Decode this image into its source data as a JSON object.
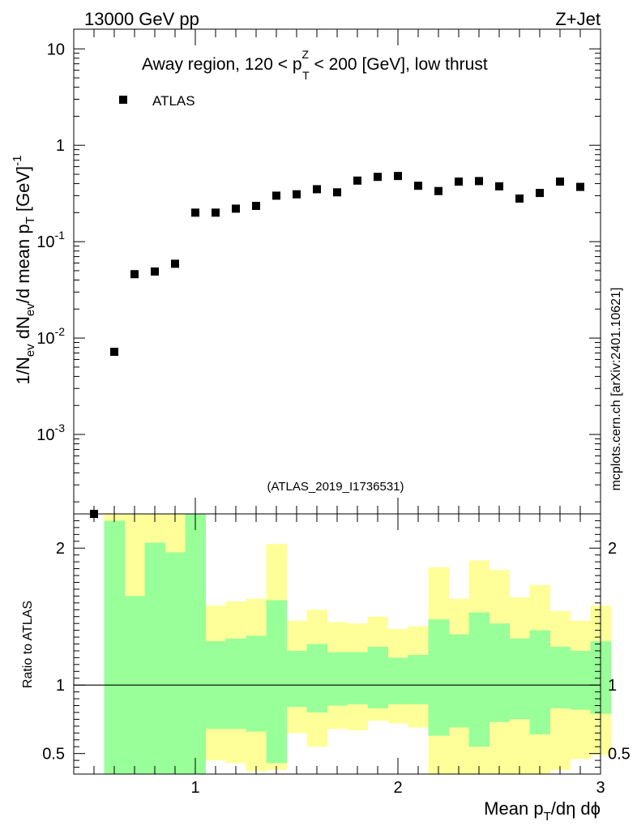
{
  "header": {
    "left": "13000 GeV pp",
    "right": "Z+Jet"
  },
  "watermark": "mcplots.cern.ch [arXiv:2401.10621]",
  "analysis_tag": "(ATLAS_2019_I1736531)",
  "colors": {
    "band_inner": "#99ff99",
    "band_outer": "#ffff99",
    "marker": "#000000",
    "axis": "#000000",
    "tag": "#999999"
  },
  "chart_data": [
    {
      "type": "scatter",
      "title": {
        "main": "Away region, 120 < p",
        "sup": "Z",
        "sub": "T",
        "tail": " < 200 [GeV], low thrust"
      },
      "ylabel": {
        "a": "1/N",
        "a_sub": "ev",
        "b": " dN",
        "b_sub": "ev",
        "c": "/d mean p",
        "c_sub": "T",
        "d": " [GeV]",
        "d_sup": "-1"
      },
      "yscale": "log",
      "ylim": [
        0.00015,
        16
      ],
      "xlim": [
        0.4,
        3.0
      ],
      "ytick_labels": [
        {
          "value": 10,
          "base": "10",
          "exp": ""
        },
        {
          "value": 1,
          "base": "1",
          "exp": ""
        },
        {
          "value": 0.1,
          "base": "10",
          "exp": "-1"
        },
        {
          "value": 0.01,
          "base": "10",
          "exp": "-2"
        },
        {
          "value": 0.001,
          "base": "10",
          "exp": "-3"
        }
      ],
      "legend": {
        "label": "ATLAS",
        "placement": "top-left"
      },
      "series": [
        {
          "name": "ATLAS",
          "x": [
            0.5,
            0.6,
            0.7,
            0.8,
            0.9,
            1.0,
            1.1,
            1.2,
            1.3,
            1.4,
            1.5,
            1.6,
            1.7,
            1.8,
            1.9,
            2.0,
            2.1,
            2.2,
            2.3,
            2.4,
            2.5,
            2.6,
            2.7,
            2.8,
            2.9
          ],
          "y": [
            0.00015,
            0.0072,
            0.046,
            0.049,
            0.059,
            0.2,
            0.2,
            0.22,
            0.235,
            0.3,
            0.31,
            0.35,
            0.325,
            0.43,
            0.47,
            0.48,
            0.38,
            0.335,
            0.42,
            0.425,
            0.375,
            0.28,
            0.32,
            0.42,
            0.37
          ]
        }
      ]
    },
    {
      "type": "area",
      "ylabel": "Ratio to ATLAS",
      "xlabel": {
        "a": "Mean p",
        "a_sub": "T",
        "b": "/dη dϕ"
      },
      "xlim": [
        0.4,
        3.0
      ],
      "ylim": [
        0.35,
        2.25
      ],
      "xticks": [
        1,
        2,
        3
      ],
      "xtick_labels": [
        "1",
        "2",
        "3"
      ],
      "yticks": [
        0.5,
        1,
        2
      ],
      "ytick_labels": [
        "0.5",
        "1",
        "2"
      ],
      "reference_line": 1,
      "bin_edges": [
        0.55,
        0.65,
        0.75,
        0.85,
        0.95,
        1.05,
        1.15,
        1.25,
        1.35,
        1.45,
        1.55,
        1.65,
        1.75,
        1.85,
        1.95,
        2.05,
        2.15,
        2.25,
        2.35,
        2.45,
        2.55,
        2.65,
        2.75,
        2.85,
        2.95
      ],
      "inner_band": {
        "lo": [
          0.35,
          0.35,
          0.35,
          0.35,
          0.35,
          0.68,
          0.68,
          0.66,
          0.43,
          0.84,
          0.8,
          0.85,
          0.86,
          0.83,
          0.86,
          0.86,
          0.63,
          0.69,
          0.55,
          0.73,
          0.75,
          0.64,
          0.83,
          0.82,
          0.79
        ],
        "hi": [
          2.2,
          1.65,
          2.04,
          1.97,
          2.25,
          1.32,
          1.34,
          1.36,
          1.62,
          1.25,
          1.3,
          1.24,
          1.24,
          1.28,
          1.2,
          1.22,
          1.48,
          1.37,
          1.53,
          1.45,
          1.34,
          1.4,
          1.28,
          1.25,
          1.32
        ]
      },
      "outer_band": {
        "lo": [
          0.35,
          0.35,
          0.35,
          0.35,
          0.35,
          0.45,
          0.43,
          0.37,
          0.38,
          0.65,
          0.55,
          0.68,
          0.67,
          0.74,
          0.72,
          0.69,
          0.35,
          0.35,
          0.35,
          0.35,
          0.35,
          0.35,
          0.38,
          0.46,
          0.49
        ],
        "hi": [
          2.25,
          2.25,
          2.25,
          2.25,
          2.25,
          1.58,
          1.61,
          1.63,
          2.03,
          1.47,
          1.55,
          1.46,
          1.45,
          1.5,
          1.41,
          1.43,
          1.86,
          1.63,
          1.91,
          1.84,
          1.64,
          1.73,
          1.54,
          1.47,
          1.58
        ]
      }
    }
  ]
}
